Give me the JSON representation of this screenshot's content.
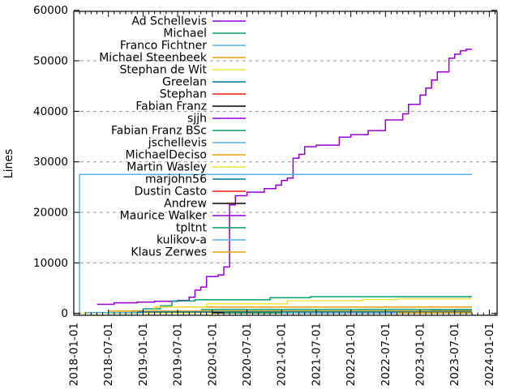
{
  "chart_data": {
    "type": "line",
    "ylabel": "Lines",
    "xlabel": "",
    "ylim": [
      0,
      60000
    ],
    "grid": "horizontal-dashed",
    "grid_color": "#9b9b9b",
    "border_color": "#000000",
    "legend_position": "top-center-inside",
    "y_ticks": [
      0,
      10000,
      20000,
      30000,
      40000,
      50000,
      60000
    ],
    "x_ticks": [
      "2018-01-01",
      "2018-07-01",
      "2019-01-01",
      "2019-07-01",
      "2020-01-01",
      "2020-07-01",
      "2021-01-01",
      "2021-07-01",
      "2022-01-01",
      "2022-07-01",
      "2023-01-01",
      "2023-07-01",
      "2024-01-01"
    ],
    "x_minor_tick_interval": "1 month",
    "data_end": "2023-10",
    "series": [
      {
        "name": "Ad Schellevis",
        "color": "#9400d3",
        "points": [
          [
            "2018-05",
            1800
          ],
          [
            "2018-08",
            2100
          ],
          [
            "2018-12",
            2250
          ],
          [
            "2019-03",
            2400
          ],
          [
            "2019-07",
            2550
          ],
          [
            "2019-09",
            3200
          ],
          [
            "2019-10",
            4600
          ],
          [
            "2019-11",
            5200
          ],
          [
            "2019-12",
            7300
          ],
          [
            "2020-02",
            7600
          ],
          [
            "2020-03",
            9200
          ],
          [
            "2020-04",
            9900
          ],
          [
            "2020-04",
            21500
          ],
          [
            "2020-05",
            23300
          ],
          [
            "2020-07",
            24000
          ],
          [
            "2020-10",
            24700
          ],
          [
            "2020-12",
            25400
          ],
          [
            "2021-01",
            26300
          ],
          [
            "2021-02",
            26800
          ],
          [
            "2021-03",
            30700
          ],
          [
            "2021-04",
            31500
          ],
          [
            "2021-05",
            33000
          ],
          [
            "2021-07",
            33300
          ],
          [
            "2021-11",
            34900
          ],
          [
            "2022-01",
            35400
          ],
          [
            "2022-04",
            36200
          ],
          [
            "2022-07",
            38300
          ],
          [
            "2022-10",
            39500
          ],
          [
            "2022-11",
            41400
          ],
          [
            "2023-01",
            43200
          ],
          [
            "2023-02",
            44600
          ],
          [
            "2023-03",
            46200
          ],
          [
            "2023-04",
            47800
          ],
          [
            "2023-06",
            50500
          ],
          [
            "2023-07",
            51300
          ],
          [
            "2023-08",
            52000
          ],
          [
            "2023-09",
            52300
          ]
        ]
      },
      {
        "name": "Michael",
        "color": "#009e73",
        "points": [
          [
            "2018-08",
            100
          ],
          [
            "2018-11",
            500
          ],
          [
            "2019-01",
            900
          ],
          [
            "2019-04",
            1500
          ],
          [
            "2019-06",
            2450
          ],
          [
            "2019-10",
            2700
          ],
          [
            "2020-11",
            3100
          ],
          [
            "2021-06",
            3300
          ]
        ]
      },
      {
        "name": "Franco Fichtner",
        "color": "#56b4e9",
        "points": [
          [
            "2018-01",
            0
          ],
          [
            "2018-02",
            27500
          ]
        ]
      },
      {
        "name": "Michael Steenbeek",
        "color": "#e69f00",
        "points": [
          [
            "2019-02",
            60
          ],
          [
            "2019-03",
            1250
          ]
        ]
      },
      {
        "name": "Stephan de Wit",
        "color": "#f0e442",
        "points": [
          [
            "2018-02",
            80
          ],
          [
            "2019-03",
            1300
          ],
          [
            "2019-12",
            1900
          ],
          [
            "2021-02",
            2500
          ],
          [
            "2022-03",
            2750
          ],
          [
            "2022-09",
            2900
          ]
        ]
      },
      {
        "name": "Greelan",
        "color": "#0072b2",
        "points": [
          [
            "2020-12",
            250
          ],
          [
            "2023-03",
            650
          ]
        ]
      },
      {
        "name": "Stephan",
        "color": "#e51e10",
        "points": [
          [
            "2019-05",
            300
          ]
        ]
      },
      {
        "name": "Fabian Franz",
        "color": "#000000",
        "points": [
          [
            "2018-11",
            180
          ]
        ]
      },
      {
        "name": "sjjh",
        "color": "#9400d3",
        "points": [
          [
            "2020-06",
            350
          ]
        ]
      },
      {
        "name": "Fabian Franz BSc",
        "color": "#009e73",
        "points": [
          [
            "2019-11",
            760
          ]
        ]
      },
      {
        "name": "jschellevis",
        "color": "#56b4e9",
        "points": [
          [
            "2018-03",
            150
          ]
        ]
      },
      {
        "name": "MichaelDeciso",
        "color": "#e69f00",
        "points": [
          [
            "2018-07",
            450
          ]
        ]
      },
      {
        "name": "Martin Wasley",
        "color": "#f0e442",
        "points": [
          [
            "2019-01",
            60
          ]
        ]
      },
      {
        "name": "marjohn56",
        "color": "#0072b2",
        "points": [
          [
            "2018-12",
            280
          ]
        ]
      },
      {
        "name": "Dustin Casto",
        "color": "#e51e10",
        "points": [
          [
            "2022-10",
            150
          ]
        ]
      },
      {
        "name": "Andrew",
        "color": "#000000",
        "points": [
          [
            "2020-01",
            120
          ]
        ]
      },
      {
        "name": "Maurice Walker",
        "color": "#9400d3",
        "points": [
          [
            "2021-04",
            100
          ]
        ]
      },
      {
        "name": "tpltnt",
        "color": "#009e73",
        "points": [
          [
            "2020-03",
            150
          ]
        ]
      },
      {
        "name": "kulikov-a",
        "color": "#56b4e9",
        "points": [
          [
            "2021-01",
            90
          ]
        ]
      },
      {
        "name": "Klaus Zerwes",
        "color": "#e69f00",
        "points": [
          [
            "2022-09",
            120
          ]
        ]
      }
    ]
  }
}
